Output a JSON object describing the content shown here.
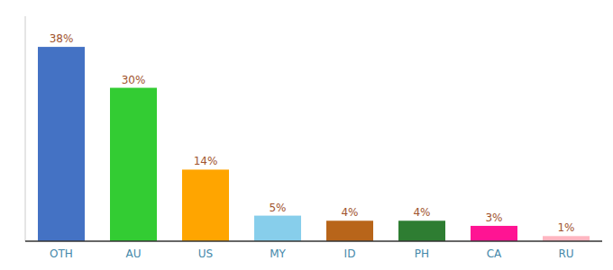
{
  "chart_data": {
    "type": "bar",
    "categories": [
      "OTH",
      "AU",
      "US",
      "MY",
      "ID",
      "PH",
      "CA",
      "RU"
    ],
    "values": [
      38,
      30,
      14,
      5,
      4,
      4,
      3,
      1
    ],
    "value_labels": [
      "38%",
      "30%",
      "14%",
      "5%",
      "4%",
      "4%",
      "3%",
      "1%"
    ],
    "colors": [
      "#4472C4",
      "#33CC33",
      "#FFA500",
      "#87CEEB",
      "#B8651A",
      "#2E7D32",
      "#FF1493",
      "#FFB6C1"
    ],
    "ylim": [
      0,
      44
    ],
    "data_labels": true,
    "tick_labels": "x"
  }
}
